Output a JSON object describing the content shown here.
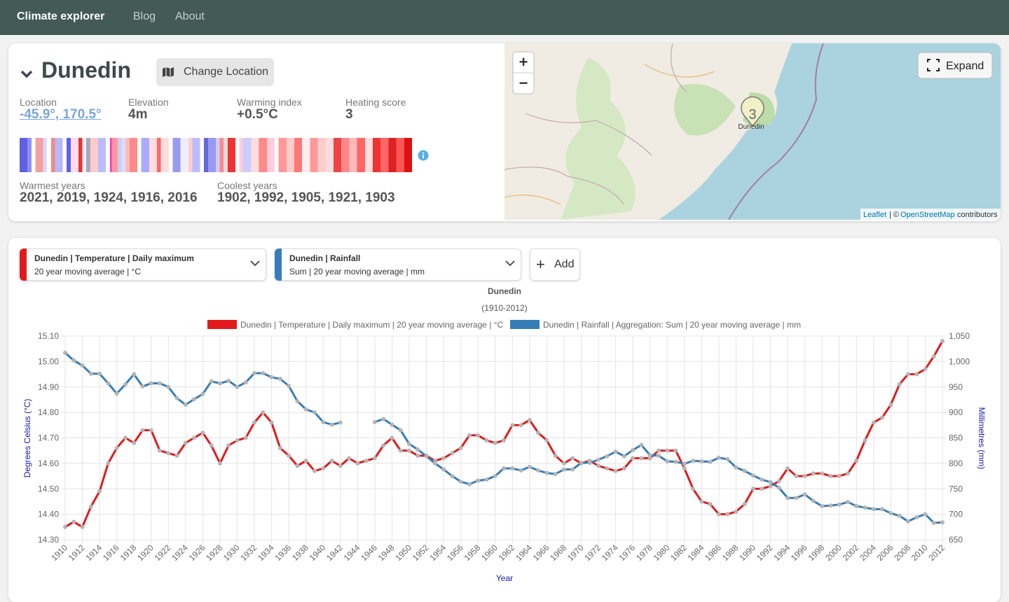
{
  "nav": {
    "brand": "Climate explorer",
    "links": [
      "Blog",
      "About"
    ]
  },
  "location": {
    "name": "Dunedin",
    "change_button": "Change Location",
    "stats": [
      {
        "label": "Location",
        "value": "-45.9°, 170.5°"
      },
      {
        "label": "Elevation",
        "value": "4m"
      },
      {
        "label": "Warming index",
        "value": "+0.5°C"
      },
      {
        "label": "Heating score",
        "value": "3"
      }
    ],
    "warmest": {
      "label": "Warmest years",
      "value": "2021, 2019, 1924, 1916, 2016"
    },
    "coolest": {
      "label": "Coolest years",
      "value": "1902, 1992, 1905, 1921, 1903"
    }
  },
  "map": {
    "zoom_in": "+",
    "zoom_out": "−",
    "expand": "Expand",
    "cluster": "3",
    "place": "Dunedin",
    "attribution": {
      "leaflet": "Leaflet",
      "separator": "| ©",
      "osm": "OpenStreetMap",
      "suffix": "contributors"
    }
  },
  "selectors": [
    {
      "title": "Dunedin | Temperature | Daily maximum",
      "subtitle": "20 year moving average | °C",
      "color": "#e31a1c"
    },
    {
      "title": "Dunedin | Rainfall",
      "subtitle": "Sum | 20 year moving average | mm",
      "color": "#377eb8"
    }
  ],
  "add_button": "Add",
  "chart_data": {
    "type": "line",
    "title": "Dunedin",
    "subtitle": "(1910-2012)",
    "x_label": "Year",
    "y_label": "Degrees Celsius (°C)",
    "y2_label": "Millimetres (mm)",
    "x": [
      1910,
      1911,
      1912,
      1913,
      1914,
      1915,
      1916,
      1917,
      1918,
      1919,
      1920,
      1921,
      1922,
      1923,
      1924,
      1925,
      1926,
      1927,
      1928,
      1929,
      1930,
      1931,
      1932,
      1933,
      1934,
      1935,
      1936,
      1937,
      1938,
      1939,
      1940,
      1941,
      1942,
      1943,
      1944,
      1945,
      1946,
      1947,
      1948,
      1949,
      1950,
      1951,
      1952,
      1953,
      1954,
      1955,
      1956,
      1957,
      1958,
      1959,
      1960,
      1961,
      1962,
      1963,
      1964,
      1965,
      1966,
      1967,
      1968,
      1969,
      1970,
      1971,
      1972,
      1973,
      1974,
      1975,
      1976,
      1977,
      1978,
      1979,
      1980,
      1981,
      1982,
      1983,
      1984,
      1985,
      1986,
      1987,
      1988,
      1989,
      1990,
      1991,
      1992,
      1993,
      1994,
      1995,
      1996,
      1997,
      1998,
      1999,
      2000,
      2001,
      2002,
      2003,
      2004,
      2005,
      2006,
      2007,
      2008,
      2009,
      2010,
      2011,
      2012
    ],
    "xlim": [
      1910,
      2012
    ],
    "xticks": [
      1910,
      1912,
      1914,
      1916,
      1918,
      1920,
      1922,
      1924,
      1926,
      1928,
      1930,
      1932,
      1934,
      1936,
      1938,
      1940,
      1942,
      1944,
      1946,
      1948,
      1950,
      1952,
      1954,
      1956,
      1958,
      1960,
      1962,
      1964,
      1966,
      1968,
      1970,
      1972,
      1974,
      1976,
      1978,
      1980,
      1982,
      1984,
      1986,
      1988,
      1990,
      1992,
      1994,
      1996,
      1998,
      2000,
      2002,
      2004,
      2006,
      2008,
      2010,
      2012
    ],
    "ylim": [
      14.3,
      15.1
    ],
    "yticks": [
      {
        "value": 14.3,
        "label": "14.30"
      },
      {
        "value": 14.4,
        "label": "14.40"
      },
      {
        "value": 14.5,
        "label": "14.50"
      },
      {
        "value": 14.6,
        "label": "14.60"
      },
      {
        "value": 14.7,
        "label": "14.70"
      },
      {
        "value": 14.8,
        "label": "14.80"
      },
      {
        "value": 14.9,
        "label": "14.90"
      },
      {
        "value": 15.0,
        "label": "15.00"
      },
      {
        "value": 15.1,
        "label": "15.10"
      }
    ],
    "y2lim": [
      650,
      1050
    ],
    "y2ticks": [
      650,
      700,
      750,
      800,
      850,
      900,
      950,
      {
        "value": 1000,
        "label": "1,000"
      },
      {
        "value": 1050,
        "label": "1,050"
      }
    ],
    "grid": true,
    "point_color": "#b4b4b4",
    "series": [
      {
        "name": "Dunedin | Temperature | Daily maximum | 20 year moving average | °C",
        "color": "#e31a1c",
        "axis": "y",
        "values": [
          14.35,
          14.37,
          14.35,
          14.43,
          14.49,
          14.6,
          14.66,
          14.7,
          14.68,
          14.73,
          14.73,
          14.65,
          14.64,
          14.63,
          14.68,
          14.7,
          14.72,
          14.67,
          14.6,
          14.67,
          14.69,
          14.7,
          14.76,
          14.8,
          14.76,
          14.66,
          14.63,
          14.59,
          14.61,
          14.57,
          14.58,
          14.61,
          14.59,
          14.62,
          14.6,
          14.61,
          14.62,
          14.67,
          14.7,
          14.65,
          14.65,
          14.63,
          14.63,
          14.61,
          14.62,
          14.64,
          14.66,
          14.71,
          14.71,
          14.69,
          14.68,
          14.69,
          14.75,
          14.75,
          14.77,
          14.72,
          14.69,
          14.63,
          14.6,
          14.62,
          14.6,
          14.61,
          14.59,
          14.58,
          14.57,
          14.58,
          14.62,
          14.62,
          14.62,
          14.65,
          14.65,
          14.65,
          14.58,
          14.5,
          14.45,
          14.44,
          14.4,
          14.4,
          14.41,
          14.44,
          14.5,
          14.5,
          14.51,
          14.53,
          14.58,
          14.55,
          14.55,
          14.56,
          14.56,
          14.55,
          14.55,
          14.56,
          14.61,
          14.69,
          14.76,
          14.78,
          14.83,
          14.91,
          14.95,
          14.95,
          14.97,
          15.02,
          15.08
        ]
      },
      {
        "name": "Dunedin | Rainfall | Aggregation: Sum | 20 year moving average | mm",
        "color": "#377eb8",
        "axis": "y2",
        "values": [
          1017,
          1002,
          992,
          976,
          976,
          957,
          937,
          955,
          975,
          951,
          957,
          957,
          950,
          928,
          915,
          926,
          936,
          961,
          957,
          962,
          950,
          959,
          977,
          977,
          969,
          966,
          952,
          922,
          906,
          900,
          881,
          876,
          880,
          null,
          null,
          null,
          881,
          887,
          876,
          865,
          838,
          827,
          814,
          800,
          788,
          775,
          764,
          759,
          766,
          768,
          775,
          790,
          790,
          786,
          793,
          786,
          781,
          779,
          788,
          788,
          801,
          801,
          807,
          814,
          823,
          814,
          826,
          836,
          816,
          815,
          804,
          803,
          799,
          805,
          804,
          803,
          811,
          808,
          792,
          785,
          776,
          768,
          763,
          752,
          732,
          732,
          739,
          726,
          716,
          717,
          719,
          724,
          716,
          713,
          710,
          710,
          702,
          697,
          686,
          694,
          700,
          683,
          684
        ]
      }
    ]
  }
}
